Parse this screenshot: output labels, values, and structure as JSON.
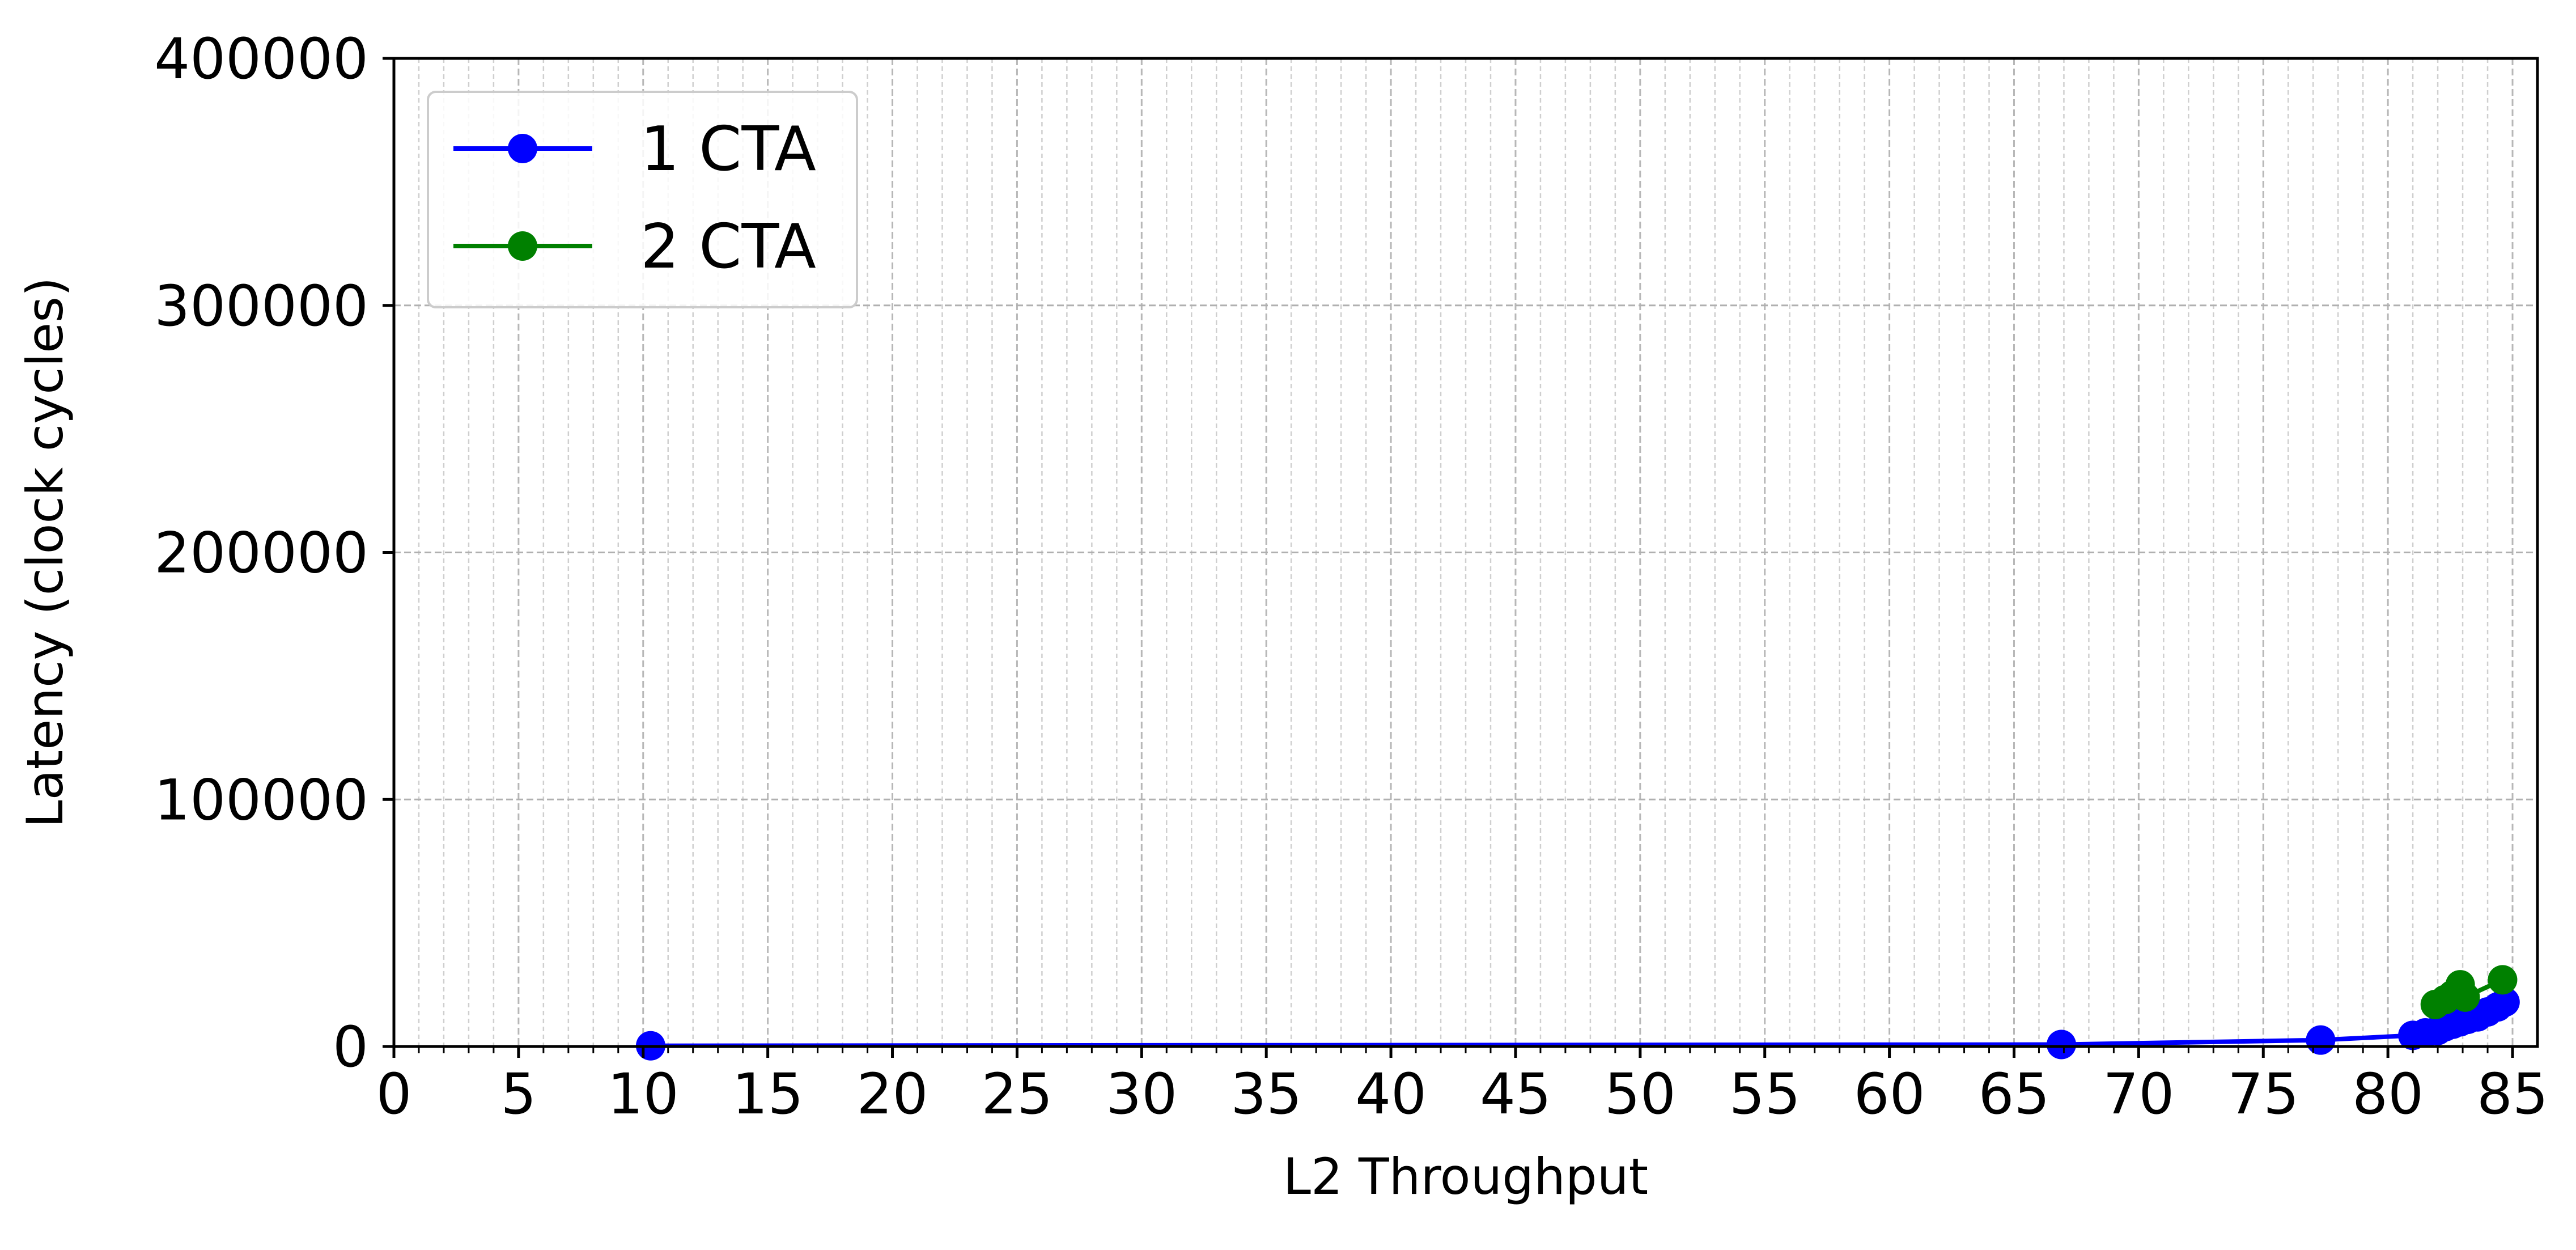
{
  "chart_data": {
    "type": "line",
    "title": "",
    "xlabel": "L2 Throughput",
    "ylabel": "Latency (clock cycles)",
    "xlim": [
      0,
      86
    ],
    "ylim": [
      0,
      400000
    ],
    "xticks": [
      0,
      5,
      10,
      15,
      20,
      25,
      30,
      35,
      40,
      45,
      50,
      55,
      60,
      65,
      70,
      75,
      80,
      85
    ],
    "yticks": [
      0,
      100000,
      200000,
      300000,
      400000
    ],
    "x_minor_step": 1,
    "grid": true,
    "legend_placement": "top-left",
    "series": [
      {
        "name": "1 CTA",
        "color": "#0000ff",
        "x": [
          10.3,
          66.9,
          77.3,
          81.0,
          81.5,
          82.0,
          82.3,
          82.6,
          82.9,
          83.2,
          83.6,
          84.0,
          84.4,
          84.7
        ],
        "y": [
          300,
          800,
          2600,
          4500,
          5500,
          6500,
          8000,
          9000,
          10000,
          11000,
          12000,
          14000,
          16000,
          18000
        ]
      },
      {
        "name": "2 CTA",
        "color": "#008000",
        "x": [
          81.9,
          82.3,
          82.6,
          82.9,
          83.1,
          84.6
        ],
        "y": [
          17000,
          19000,
          21000,
          25000,
          20000,
          27000
        ]
      }
    ]
  }
}
